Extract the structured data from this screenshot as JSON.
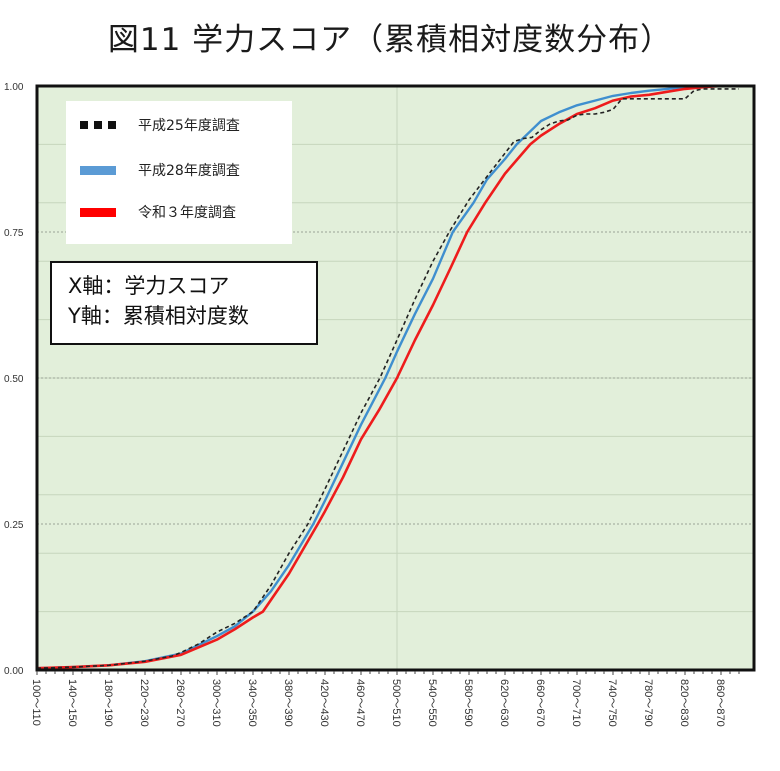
{
  "title": "図11 学力スコア（累積相対度数分布）",
  "legend": [
    {
      "label": "平成25年度調査",
      "style": "dotted",
      "color": "#111111"
    },
    {
      "label": "平成28年度調査",
      "style": "solid",
      "color": "#5b9bd5"
    },
    {
      "label": "令和３年度調査",
      "style": "solid",
      "color": "#ff0000"
    }
  ],
  "axis_note": {
    "x": "X軸：学力スコア",
    "y": "Y軸：累積相対度数"
  },
  "colors": {
    "plot_bg": "#e2efda",
    "h25": "#222222",
    "h28": "#3f8fcf",
    "r3": "#ee1c1c",
    "grid_minor": "#c6d6bd",
    "grid_major": "#9aa396"
  },
  "chart_data": {
    "type": "line",
    "title": "図11 学力スコア（累積相対度数分布）",
    "xlabel": "学力スコア",
    "ylabel": "累積相対度数",
    "ylim": [
      0,
      1
    ],
    "xlim": [
      100,
      880
    ],
    "y_ticks": [
      "0.00",
      "0.25",
      "0.50",
      "0.75",
      "1.00"
    ],
    "x_tick_labels": [
      "100～110",
      "140～150",
      "180～190",
      "220～230",
      "260～270",
      "300～310",
      "340～350",
      "380～390",
      "420～430",
      "460～470",
      "500～510",
      "540～550",
      "580～590",
      "620～630",
      "660～670",
      "700～710",
      "740～750",
      "780～790",
      "820～830",
      "860～870"
    ],
    "grid": true,
    "legend_position": "upper-left",
    "series": [
      {
        "name": "平成25年度調査",
        "style": "dashed",
        "points": [
          [
            100,
            0.003
          ],
          [
            140,
            0.005
          ],
          [
            180,
            0.008
          ],
          [
            220,
            0.015
          ],
          [
            250,
            0.024
          ],
          [
            260,
            0.03
          ],
          [
            280,
            0.045
          ],
          [
            300,
            0.065
          ],
          [
            320,
            0.08
          ],
          [
            340,
            0.1
          ],
          [
            360,
            0.145
          ],
          [
            380,
            0.2
          ],
          [
            401,
            0.25
          ],
          [
            420,
            0.31
          ],
          [
            440,
            0.375
          ],
          [
            460,
            0.44
          ],
          [
            481,
            0.5
          ],
          [
            500,
            0.565
          ],
          [
            520,
            0.635
          ],
          [
            540,
            0.7
          ],
          [
            558,
            0.75
          ],
          [
            580,
            0.805
          ],
          [
            600,
            0.845
          ],
          [
            620,
            0.885
          ],
          [
            630,
            0.905
          ],
          [
            640,
            0.91
          ],
          [
            650,
            0.912
          ],
          [
            660,
            0.925
          ],
          [
            670,
            0.935
          ],
          [
            680,
            0.94
          ],
          [
            690,
            0.942
          ],
          [
            700,
            0.95
          ],
          [
            710,
            0.952
          ],
          [
            720,
            0.952
          ],
          [
            730,
            0.955
          ],
          [
            740,
            0.96
          ],
          [
            750,
            0.978
          ],
          [
            760,
            0.978
          ],
          [
            800,
            0.978
          ],
          [
            820,
            0.978
          ],
          [
            830,
            0.992
          ],
          [
            840,
            0.995
          ],
          [
            870,
            0.995
          ],
          [
            880,
            0.995
          ]
        ]
      },
      {
        "name": "平成28年度調査",
        "style": "solid",
        "points": [
          [
            100,
            0.003
          ],
          [
            140,
            0.005
          ],
          [
            180,
            0.008
          ],
          [
            220,
            0.015
          ],
          [
            260,
            0.028
          ],
          [
            300,
            0.058
          ],
          [
            320,
            0.075
          ],
          [
            340,
            0.1
          ],
          [
            360,
            0.135
          ],
          [
            380,
            0.18
          ],
          [
            407,
            0.25
          ],
          [
            420,
            0.29
          ],
          [
            440,
            0.355
          ],
          [
            460,
            0.42
          ],
          [
            487,
            0.5
          ],
          [
            500,
            0.545
          ],
          [
            520,
            0.61
          ],
          [
            540,
            0.67
          ],
          [
            562,
            0.75
          ],
          [
            585,
            0.8
          ],
          [
            600,
            0.84
          ],
          [
            620,
            0.875
          ],
          [
            633,
            0.9
          ],
          [
            660,
            0.94
          ],
          [
            680,
            0.955
          ],
          [
            700,
            0.967
          ],
          [
            720,
            0.975
          ],
          [
            740,
            0.983
          ],
          [
            760,
            0.988
          ],
          [
            780,
            0.992
          ],
          [
            800,
            0.995
          ],
          [
            820,
            0.998
          ],
          [
            840,
            1.0
          ],
          [
            880,
            1.0
          ]
        ]
      },
      {
        "name": "令和３年度調査",
        "style": "solid",
        "points": [
          [
            100,
            0.003
          ],
          [
            140,
            0.005
          ],
          [
            180,
            0.008
          ],
          [
            220,
            0.014
          ],
          [
            260,
            0.026
          ],
          [
            300,
            0.052
          ],
          [
            320,
            0.07
          ],
          [
            340,
            0.09
          ],
          [
            351,
            0.1
          ],
          [
            380,
            0.165
          ],
          [
            412,
            0.25
          ],
          [
            420,
            0.272
          ],
          [
            440,
            0.33
          ],
          [
            460,
            0.395
          ],
          [
            480,
            0.445
          ],
          [
            500,
            0.5
          ],
          [
            520,
            0.565
          ],
          [
            540,
            0.625
          ],
          [
            560,
            0.69
          ],
          [
            578,
            0.75
          ],
          [
            598,
            0.8
          ],
          [
            620,
            0.85
          ],
          [
            648,
            0.9
          ],
          [
            660,
            0.915
          ],
          [
            680,
            0.935
          ],
          [
            700,
            0.952
          ],
          [
            720,
            0.962
          ],
          [
            740,
            0.975
          ],
          [
            760,
            0.982
          ],
          [
            780,
            0.985
          ],
          [
            800,
            0.99
          ],
          [
            820,
            0.995
          ],
          [
            840,
            0.998
          ],
          [
            860,
            1.0
          ],
          [
            880,
            1.0
          ]
        ]
      }
    ]
  }
}
